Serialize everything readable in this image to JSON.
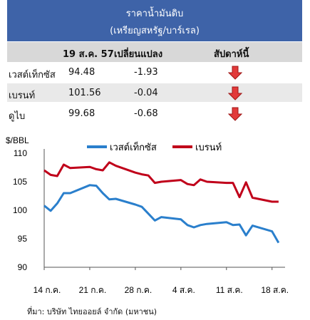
{
  "table": {
    "title": "ราคาน้ำมันดิบ",
    "subtitle": "(เหรียญสหรัฐ/บาร์เรล)",
    "col_date": "19 ส.ค. 57",
    "col_change": "เปลี่ยนแปลง",
    "col_week": "สัปดาห์นี้",
    "rows": [
      {
        "name": "เวสต์เท็กซัส",
        "price": "94.48",
        "change": "-1.93",
        "trend": "down"
      },
      {
        "name": "เบรนท์",
        "price": "101.56",
        "change": "-0.04",
        "trend": "down"
      },
      {
        "name": "ดูไบ",
        "price": "99.68",
        "change": "-0.68",
        "trend": "down"
      }
    ]
  },
  "chart_data": {
    "type": "line",
    "ylabel": "$/BBL",
    "ylim": [
      90,
      110
    ],
    "yticks": [
      "110",
      "105",
      "100",
      "95",
      "90"
    ],
    "x_tick_labels": [
      "14 ก.ค.",
      "21 ก.ค.",
      "28 ก.ค.",
      "4 ส.ค.",
      "11 ส.ค.",
      "18 ส.ค."
    ],
    "x_days": [
      14,
      15,
      16,
      17,
      18,
      21,
      22,
      23,
      24,
      25,
      28,
      29,
      30,
      31,
      32,
      35,
      36,
      37,
      38,
      39,
      42,
      43,
      44,
      45,
      46,
      49,
      50
    ],
    "legend_position": "top",
    "series": [
      {
        "name": "เวสต์เท็กซัส",
        "color": "#2a7fcc",
        "values": [
          100.8,
          99.9,
          101.2,
          103.0,
          103.0,
          104.4,
          104.3,
          103.0,
          101.9,
          102.0,
          101.0,
          100.6,
          99.4,
          98.2,
          98.8,
          98.4,
          97.4,
          97.0,
          97.4,
          97.6,
          97.9,
          97.4,
          97.5,
          95.6,
          97.3,
          96.3,
          94.3
        ]
      },
      {
        "name": "เบรนท์",
        "color": "#c0001a",
        "values": [
          107.0,
          106.2,
          106.0,
          108.0,
          107.4,
          107.6,
          107.2,
          107.0,
          108.4,
          107.8,
          106.6,
          106.3,
          106.1,
          104.8,
          105.0,
          105.3,
          104.6,
          104.4,
          105.4,
          105.0,
          104.8,
          104.8,
          102.3,
          104.9,
          102.2,
          101.5,
          101.5
        ]
      }
    ]
  },
  "source": "ที่มา: บริษัท ไทยออยล์ จำกัด (มหาชน)",
  "colors": {
    "header": "#3e63a8",
    "arrow": "#e23a3a"
  }
}
